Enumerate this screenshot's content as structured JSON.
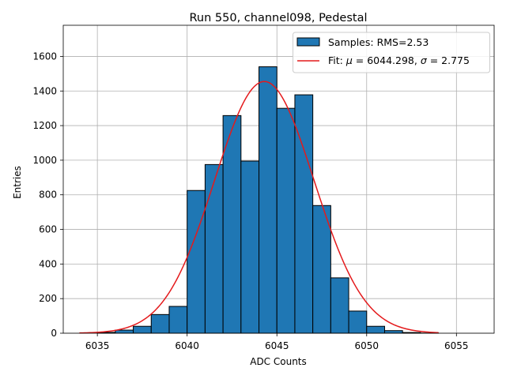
{
  "chart_data": {
    "type": "bar",
    "title": "Run 550, channel098, Pedestal",
    "xlabel": "ADC Counts",
    "ylabel": "Entries",
    "xlim": [
      6033.1,
      6057.1
    ],
    "ylim": [
      0,
      1780
    ],
    "xticks": [
      6035,
      6040,
      6045,
      6050,
      6055
    ],
    "yticks": [
      0,
      200,
      400,
      600,
      800,
      1000,
      1200,
      1400,
      1600
    ],
    "grid": true,
    "legend_position": "top-right",
    "histogram": {
      "name": "Samples: RMS=2.53",
      "color": "#1f77b4",
      "bin_width": 1,
      "bins": [
        {
          "left": 6035,
          "count": 5
        },
        {
          "left": 6036,
          "count": 18
        },
        {
          "left": 6037,
          "count": 40
        },
        {
          "left": 6038,
          "count": 108
        },
        {
          "left": 6039,
          "count": 155
        },
        {
          "left": 6040,
          "count": 825
        },
        {
          "left": 6041,
          "count": 975
        },
        {
          "left": 6042,
          "count": 1258
        },
        {
          "left": 6043,
          "count": 995
        },
        {
          "left": 6044,
          "count": 1540
        },
        {
          "left": 6045,
          "count": 1300
        },
        {
          "left": 6046,
          "count": 1378
        },
        {
          "left": 6047,
          "count": 738
        },
        {
          "left": 6048,
          "count": 320
        },
        {
          "left": 6049,
          "count": 128
        },
        {
          "left": 6050,
          "count": 40
        },
        {
          "left": 6051,
          "count": 15
        },
        {
          "left": 6052,
          "count": 4
        },
        {
          "left": 6053,
          "count": 1
        }
      ]
    },
    "fit": {
      "name_prefix": "Fit: ",
      "mu_symbol": "μ",
      "mu_text": " = 6044.298, ",
      "sigma_symbol": "σ",
      "sigma_text": " = 2.775",
      "color": "#e41a1c",
      "mu": 6044.298,
      "sigma": 2.775,
      "amplitude": 1455,
      "x_range": [
        6034,
        6054
      ]
    }
  }
}
